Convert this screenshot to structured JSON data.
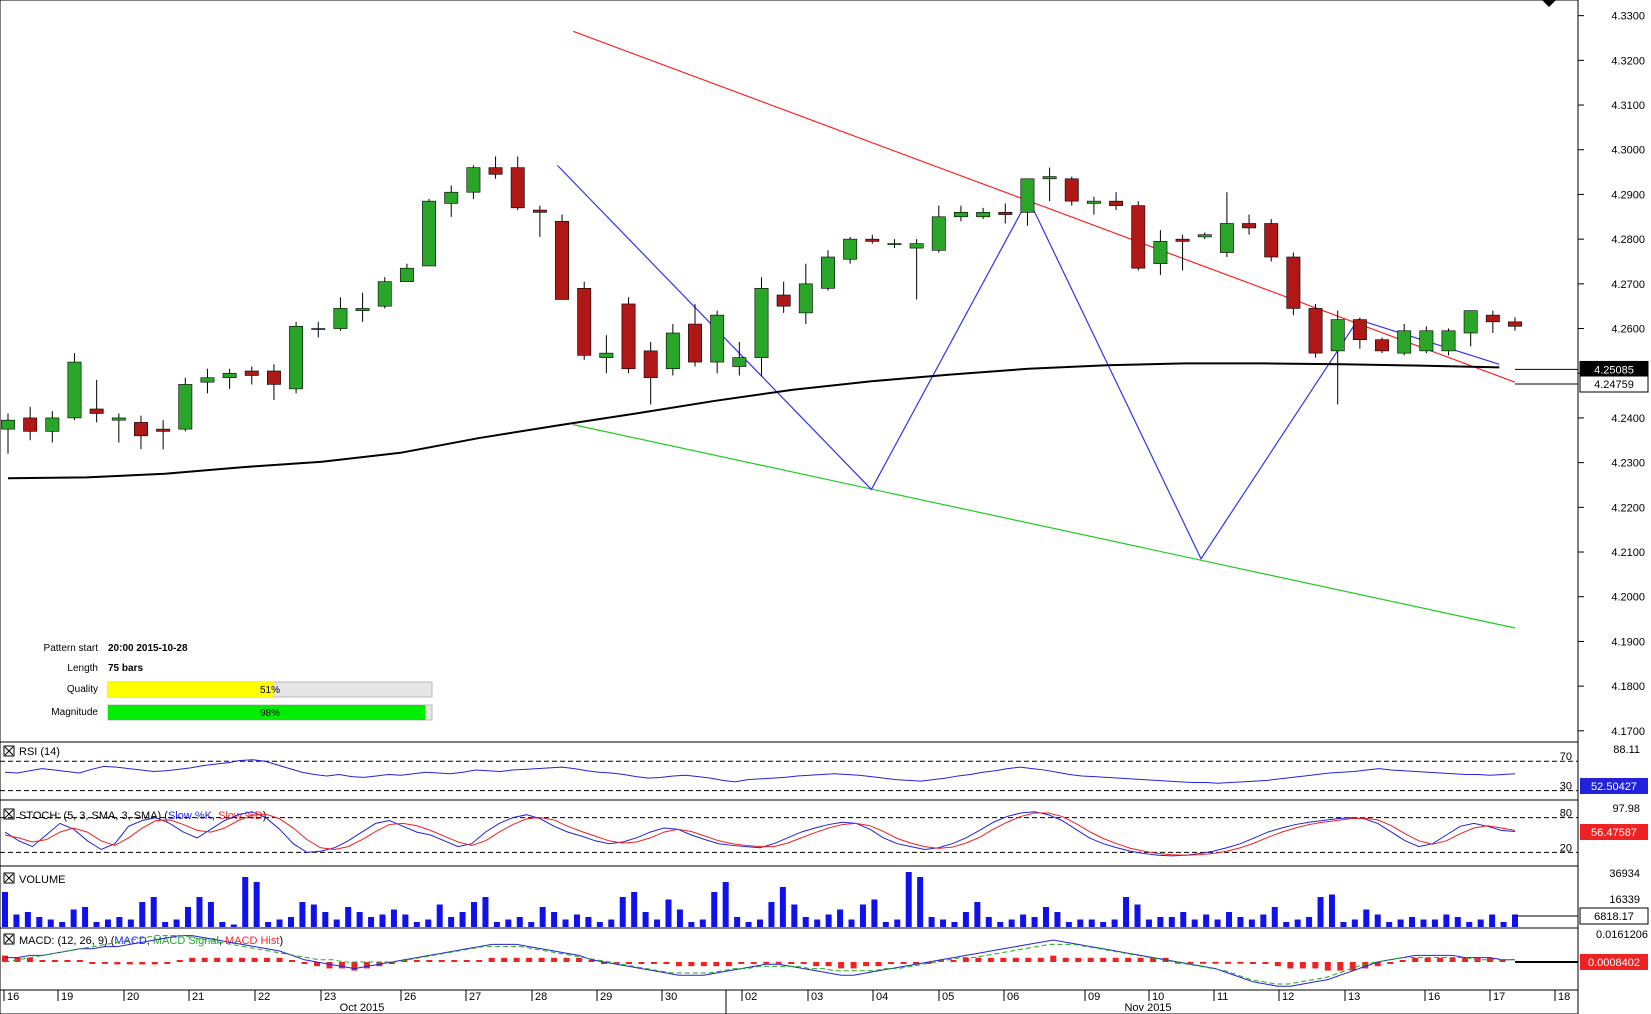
{
  "chart_data": {
    "type": "candlestick",
    "instrument_pattern": "falling wedge / channel down",
    "price_axis": {
      "ticks": [
        "4.3300",
        "4.3200",
        "4.3100",
        "4.3000",
        "4.2900",
        "4.2800",
        "4.2700",
        "4.2600",
        "4.2500",
        "4.2400",
        "4.2300",
        "4.2200",
        "4.2100",
        "4.2000",
        "4.1900",
        "4.1800",
        "4.1700"
      ],
      "range": [
        4.1675,
        4.3335
      ]
    },
    "time_axis": {
      "day_labels": [
        "16",
        "19",
        "20",
        "21",
        "22",
        "23",
        "26",
        "27",
        "28",
        "29",
        "30",
        "02",
        "03",
        "04",
        "05",
        "06",
        "09",
        "10",
        "11",
        "12",
        "13",
        "16",
        "17",
        "18"
      ],
      "month_labels": [
        "Oct 2015",
        "Nov 2015"
      ]
    },
    "price_tags": {
      "sma": "4.25085",
      "last": "4.24759"
    },
    "pattern_info": {
      "start_label": "Pattern start",
      "start_value": "20:00 2015-10-28",
      "length_label": "Length",
      "length_value": "75 bars",
      "quality_label": "Quality",
      "quality_text": "51%",
      "quality_value": 51,
      "magnitude_label": "Magnitude",
      "magnitude_text": "98%",
      "magnitude_value": 98
    },
    "trendlines": {
      "resistance": {
        "color": "#ff2222",
        "from": [
          36,
          4.3265
        ],
        "to": [
          96,
          4.248
        ]
      },
      "support": {
        "color": "#22cc22",
        "from": [
          36,
          4.2385
        ],
        "to": [
          96,
          4.193
        ]
      }
    },
    "zigzag_points": [
      [
        35,
        4.2965
      ],
      [
        55,
        4.224
      ],
      [
        65,
        4.289
      ],
      [
        76,
        4.2085
      ],
      [
        86,
        4.262
      ],
      [
        95,
        4.252
      ]
    ],
    "sma_points": [
      [
        0,
        4.2265
      ],
      [
        5,
        4.2267
      ],
      [
        10,
        4.2275
      ],
      [
        15,
        4.229
      ],
      [
        20,
        4.2302
      ],
      [
        25,
        4.2322
      ],
      [
        30,
        4.2355
      ],
      [
        35,
        4.2383
      ],
      [
        40,
        4.241
      ],
      [
        45,
        4.2438
      ],
      [
        50,
        4.2463
      ],
      [
        55,
        4.2482
      ],
      [
        60,
        4.2497
      ],
      [
        65,
        4.251
      ],
      [
        70,
        4.2518
      ],
      [
        75,
        4.2522
      ],
      [
        80,
        4.2522
      ],
      [
        85,
        4.252
      ],
      [
        90,
        4.2517
      ],
      [
        95,
        4.2513
      ]
    ],
    "candles": [
      [
        4.2375,
        4.241,
        4.232,
        4.2395
      ],
      [
        4.24,
        4.2425,
        4.235,
        4.237
      ],
      [
        4.237,
        4.2415,
        4.2345,
        4.24
      ],
      [
        4.24,
        4.2545,
        4.2395,
        4.2525
      ],
      [
        4.242,
        4.2485,
        4.239,
        4.241
      ],
      [
        4.2395,
        4.241,
        4.2345,
        4.24
      ],
      [
        4.239,
        4.2405,
        4.233,
        4.236
      ],
      [
        4.2375,
        4.2395,
        4.233,
        4.237
      ],
      [
        4.2375,
        4.249,
        4.237,
        4.2475
      ],
      [
        4.248,
        4.251,
        4.2455,
        4.249
      ],
      [
        4.249,
        4.251,
        4.2465,
        4.25
      ],
      [
        4.2505,
        4.2515,
        4.2475,
        4.2495
      ],
      [
        4.2505,
        4.252,
        4.244,
        4.2475
      ],
      [
        4.2465,
        4.2615,
        4.2455,
        4.2605
      ],
      [
        4.26,
        4.2615,
        4.258,
        4.26
      ],
      [
        4.26,
        4.267,
        4.2595,
        4.2645
      ],
      [
        4.264,
        4.268,
        4.2615,
        4.2645
      ],
      [
        4.265,
        4.2715,
        4.2645,
        4.2705
      ],
      [
        4.2705,
        4.2745,
        4.2705,
        4.2735
      ],
      [
        4.274,
        4.289,
        4.274,
        4.2885
      ],
      [
        4.288,
        4.292,
        4.285,
        4.2905
      ],
      [
        4.2905,
        4.2965,
        4.289,
        4.296
      ],
      [
        4.296,
        4.2985,
        4.2935,
        4.2945
      ],
      [
        4.296,
        4.2985,
        4.2865,
        4.287
      ],
      [
        4.2865,
        4.2875,
        4.2805,
        4.286
      ],
      [
        4.284,
        4.2855,
        4.2665,
        4.2665
      ],
      [
        4.269,
        4.2705,
        4.253,
        4.254
      ],
      [
        4.2535,
        4.2585,
        4.25,
        4.2545
      ],
      [
        4.2655,
        4.267,
        4.25,
        4.251
      ],
      [
        4.255,
        4.257,
        4.243,
        4.249
      ],
      [
        4.251,
        4.261,
        4.2495,
        4.259
      ],
      [
        4.261,
        4.2655,
        4.2515,
        4.2525
      ],
      [
        4.2525,
        4.264,
        4.25,
        4.263
      ],
      [
        4.2515,
        4.257,
        4.2495,
        4.2535
      ],
      [
        4.2535,
        4.2715,
        4.2495,
        4.269
      ],
      [
        4.2675,
        4.2705,
        4.2635,
        4.265
      ],
      [
        4.2635,
        4.2745,
        4.261,
        4.27
      ],
      [
        4.269,
        4.2775,
        4.2685,
        4.276
      ],
      [
        4.2755,
        4.2805,
        4.2745,
        4.28
      ],
      [
        4.28,
        4.281,
        4.279,
        4.2795
      ],
      [
        4.279,
        4.28,
        4.278,
        4.279
      ],
      [
        4.278,
        4.28,
        4.2665,
        4.279
      ],
      [
        4.2775,
        4.2875,
        4.277,
        4.285
      ],
      [
        4.285,
        4.2875,
        4.284,
        4.286
      ],
      [
        4.285,
        4.287,
        4.2845,
        4.286
      ],
      [
        4.286,
        4.288,
        4.2835,
        4.2855
      ],
      [
        4.286,
        4.2935,
        4.283,
        4.2935
      ],
      [
        4.2935,
        4.296,
        4.2885,
        4.294
      ],
      [
        4.2935,
        4.294,
        4.2875,
        4.2885
      ],
      [
        4.288,
        4.2895,
        4.2855,
        4.2885
      ],
      [
        4.2885,
        4.2905,
        4.2865,
        4.2875
      ],
      [
        4.2875,
        4.2885,
        4.273,
        4.2735
      ],
      [
        4.2745,
        4.282,
        4.272,
        4.2795
      ],
      [
        4.28,
        4.281,
        4.273,
        4.2795
      ],
      [
        4.2805,
        4.2815,
        4.28,
        4.281
      ],
      [
        4.277,
        4.2905,
        4.276,
        4.2835
      ],
      [
        4.2835,
        4.2855,
        4.281,
        4.2825
      ],
      [
        4.2835,
        4.2845,
        4.275,
        4.276
      ],
      [
        4.276,
        4.277,
        4.263,
        4.2645
      ],
      [
        4.2645,
        4.2655,
        4.2535,
        4.2545
      ],
      [
        4.255,
        4.264,
        4.243,
        4.262
      ],
      [
        4.262,
        4.2625,
        4.2555,
        4.2575
      ],
      [
        4.2575,
        4.258,
        4.2545,
        4.255
      ],
      [
        4.2545,
        4.261,
        4.254,
        4.2595
      ],
      [
        4.255,
        4.2605,
        4.2545,
        4.2595
      ],
      [
        4.255,
        4.26,
        4.254,
        4.2595
      ],
      [
        4.259,
        4.264,
        4.256,
        4.264
      ],
      [
        4.263,
        4.264,
        4.259,
        4.2615
      ],
      [
        4.2615,
        4.2625,
        4.2595,
        4.2605
      ]
    ],
    "rsi": {
      "label": "RSI (14)",
      "levels": [
        "70",
        "30"
      ],
      "tag": "52.50427",
      "scale_top": "88.11",
      "values": [
        55,
        54,
        57,
        60,
        58,
        56,
        54,
        59,
        63,
        62,
        60,
        58,
        56,
        57,
        59,
        61,
        64,
        66,
        68,
        71,
        72,
        70,
        65,
        60,
        55,
        52,
        50,
        52,
        49,
        48,
        50,
        52,
        51,
        53,
        55,
        54,
        53,
        55,
        58,
        57,
        56,
        58,
        59,
        60,
        61,
        62,
        60,
        57,
        55,
        54,
        52,
        49,
        47,
        48,
        50,
        51,
        49,
        47,
        44,
        42,
        45,
        46,
        47,
        48,
        50,
        51,
        52,
        53,
        52,
        51,
        49,
        47,
        45,
        44,
        43,
        45,
        47,
        50,
        52,
        55,
        57,
        60,
        62,
        60,
        58,
        55,
        52,
        50,
        49,
        48,
        47,
        46,
        45,
        44,
        43,
        42,
        41,
        41,
        40,
        41,
        42,
        43,
        44,
        46,
        48,
        50,
        52,
        54,
        55,
        56,
        58,
        60,
        58,
        57,
        56,
        55,
        54,
        53,
        52,
        52,
        51,
        52,
        53
      ]
    },
    "stoch": {
      "label": "STOCH: (5, 3, SMA, 3, SMA)",
      "legend": [
        "Slow %K",
        "Slow %D"
      ],
      "levels": [
        "80",
        "20"
      ],
      "tag": "56.47587",
      "scale_top": "97.98",
      "k": [
        55,
        40,
        30,
        50,
        70,
        60,
        40,
        25,
        35,
        65,
        75,
        80,
        70,
        55,
        45,
        60,
        75,
        85,
        90,
        80,
        60,
        35,
        20,
        22,
        28,
        40,
        55,
        70,
        75,
        65,
        55,
        50,
        40,
        30,
        35,
        55,
        70,
        80,
        85,
        78,
        65,
        55,
        48,
        40,
        35,
        38,
        45,
        55,
        62,
        60,
        50,
        42,
        35,
        32,
        30,
        28,
        35,
        45,
        55,
        62,
        68,
        72,
        70,
        60,
        45,
        35,
        30,
        25,
        28,
        35,
        45,
        58,
        72,
        82,
        88,
        90,
        85,
        75,
        60,
        45,
        35,
        28,
        22,
        18,
        15,
        14,
        15,
        18,
        22,
        28,
        35,
        45,
        55,
        62,
        68,
        72,
        75,
        78,
        80,
        78,
        70,
        55,
        40,
        30,
        35,
        50,
        65,
        70,
        65,
        58,
        56
      ],
      "d": [
        50,
        45,
        38,
        42,
        55,
        62,
        55,
        40,
        32,
        45,
        62,
        75,
        76,
        68,
        58,
        55,
        62,
        75,
        84,
        86,
        78,
        62,
        42,
        28,
        25,
        30,
        42,
        56,
        68,
        70,
        66,
        58,
        48,
        38,
        32,
        40,
        55,
        68,
        78,
        80,
        76,
        65,
        56,
        48,
        40,
        36,
        38,
        45,
        55,
        60,
        56,
        48,
        40,
        35,
        32,
        30,
        30,
        36,
        45,
        54,
        62,
        68,
        70,
        66,
        56,
        44,
        36,
        30,
        27,
        29,
        36,
        46,
        60,
        72,
        82,
        88,
        88,
        82,
        70,
        56,
        44,
        35,
        27,
        22,
        18,
        16,
        15,
        16,
        18,
        22,
        28,
        36,
        46,
        55,
        62,
        68,
        72,
        75,
        78,
        79,
        76,
        66,
        52,
        40,
        34,
        40,
        52,
        62,
        66,
        62,
        58
      ]
    },
    "volume": {
      "label": "VOLUME",
      "tag": "6818.17",
      "scale_top": "36934",
      "scale_mid": "16339",
      "values": [
        14,
        5,
        6,
        4,
        3,
        2,
        7,
        8,
        2,
        3,
        4,
        3,
        10,
        12,
        2,
        3,
        8,
        12,
        10,
        2,
        1,
        20,
        18,
        2,
        3,
        4,
        10,
        9,
        6,
        3,
        8,
        6,
        4,
        5,
        7,
        5,
        2,
        3,
        9,
        4,
        6,
        10,
        12,
        2,
        3,
        4,
        2,
        8,
        6,
        3,
        5,
        4,
        2,
        3,
        12,
        14,
        6,
        3,
        11,
        7,
        2,
        3,
        14,
        18,
        4,
        2,
        3,
        10,
        16,
        9,
        4,
        3,
        5,
        7,
        3,
        9,
        11,
        2,
        3,
        22,
        20,
        4,
        3,
        2,
        6,
        10,
        4,
        2,
        3,
        5,
        4,
        8,
        6,
        2,
        3,
        3,
        2,
        3,
        12,
        9,
        3,
        4,
        4,
        6,
        3,
        5,
        3,
        6,
        4,
        3,
        5,
        8,
        2,
        3,
        4,
        12,
        13,
        2,
        3,
        7,
        5,
        2,
        3,
        4,
        3,
        3,
        5,
        4,
        2,
        3,
        5,
        2,
        5
      ]
    },
    "macd": {
      "label": "MACD: (12, 26, 9)",
      "legend": [
        "MACD",
        "MACD Signal",
        "MACD Hist"
      ],
      "tag": "0.0008402",
      "scale_top": "0.0161206",
      "macd": [
        2,
        2,
        3,
        3,
        4,
        5,
        6,
        6,
        7,
        7,
        8,
        9,
        10,
        11,
        12,
        12,
        11,
        10,
        9,
        8,
        7,
        6,
        5,
        3,
        1,
        0,
        -1,
        -2,
        -3,
        -2,
        -1,
        0,
        1,
        2,
        3,
        4,
        5,
        6,
        7,
        8,
        8,
        8,
        7,
        6,
        5,
        4,
        3,
        1,
        0,
        -1,
        -2,
        -3,
        -4,
        -5,
        -6,
        -6,
        -6,
        -5,
        -4,
        -3,
        -2,
        -1,
        -1,
        -2,
        -3,
        -4,
        -5,
        -6,
        -6,
        -5,
        -4,
        -3,
        -2,
        -1,
        0,
        1,
        2,
        3,
        4,
        5,
        6,
        7,
        8,
        9,
        10,
        9,
        8,
        7,
        6,
        5,
        4,
        3,
        2,
        1,
        0,
        -1,
        -2,
        -3,
        -5,
        -7,
        -9,
        -10,
        -11,
        -11,
        -10,
        -9,
        -8,
        -6,
        -4,
        -2,
        0,
        1,
        2,
        3,
        3,
        3,
        3,
        2,
        2,
        2,
        1,
        1
      ],
      "signal": [
        0,
        1,
        2,
        3,
        4,
        5,
        6,
        7,
        8,
        9,
        10,
        11,
        12,
        12,
        12,
        11,
        10,
        9,
        8,
        7,
        6,
        5,
        4,
        3,
        2,
        1,
        1,
        0,
        0,
        0,
        0,
        0,
        1,
        2,
        3,
        4,
        5,
        6,
        7,
        7,
        7,
        7,
        6,
        5,
        4,
        3,
        2,
        1,
        0,
        -1,
        -2,
        -3,
        -4,
        -5,
        -5,
        -5,
        -5,
        -4,
        -3,
        -3,
        -2,
        -2,
        -2,
        -2,
        -3,
        -3,
        -4,
        -4,
        -4,
        -4,
        -3,
        -3,
        -2,
        -1,
        0,
        1,
        2,
        2,
        3,
        4,
        5,
        6,
        7,
        8,
        8,
        8,
        7,
        6,
        5,
        4,
        3,
        2,
        1,
        0,
        -1,
        -2,
        -3,
        -4,
        -6,
        -8,
        -9,
        -10,
        -10,
        -9,
        -8,
        -7,
        -5,
        -3,
        -1,
        0,
        1,
        2,
        2,
        2,
        2,
        2,
        2,
        1,
        1,
        1,
        1
      ]
    }
  }
}
